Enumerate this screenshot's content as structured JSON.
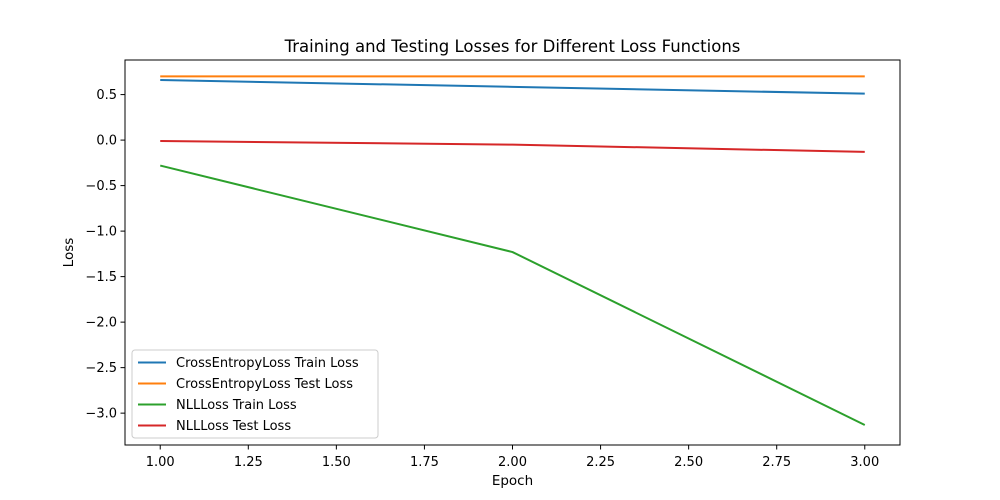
{
  "chart_data": {
    "type": "line",
    "title": "Training and Testing Losses for Different Loss Functions",
    "xlabel": "Epoch",
    "ylabel": "Loss",
    "xlim": [
      0.9,
      3.1
    ],
    "ylim": [
      -3.35,
      0.88
    ],
    "x": [
      1,
      2,
      3
    ],
    "xticks": [
      1.0,
      1.25,
      1.5,
      1.75,
      2.0,
      2.25,
      2.5,
      2.75,
      3.0
    ],
    "xtick_labels": [
      "1.00",
      "1.25",
      "1.50",
      "1.75",
      "2.00",
      "2.25",
      "2.50",
      "2.75",
      "3.00"
    ],
    "yticks": [
      0.5,
      0.0,
      -0.5,
      -1.0,
      -1.5,
      -2.0,
      -2.5,
      -3.0
    ],
    "ytick_labels": [
      "0.5",
      "0.0",
      "−0.5",
      "−1.0",
      "−1.5",
      "−2.0",
      "−2.5",
      "−3.0"
    ],
    "grid": false,
    "legend_position": "lower-left",
    "series": [
      {
        "name": "CrossEntropyLoss Train Loss",
        "color": "#1f77b4",
        "values": [
          0.66,
          0.585,
          0.51
        ]
      },
      {
        "name": "CrossEntropyLoss Test Loss",
        "color": "#ff7f0e",
        "values": [
          0.7,
          0.7,
          0.7
        ]
      },
      {
        "name": "NLLLoss Train Loss",
        "color": "#2ca02c",
        "values": [
          -0.28,
          -1.23,
          -3.13
        ]
      },
      {
        "name": "NLLLoss Test Loss",
        "color": "#d62728",
        "values": [
          -0.01,
          -0.05,
          -0.13
        ]
      }
    ]
  }
}
